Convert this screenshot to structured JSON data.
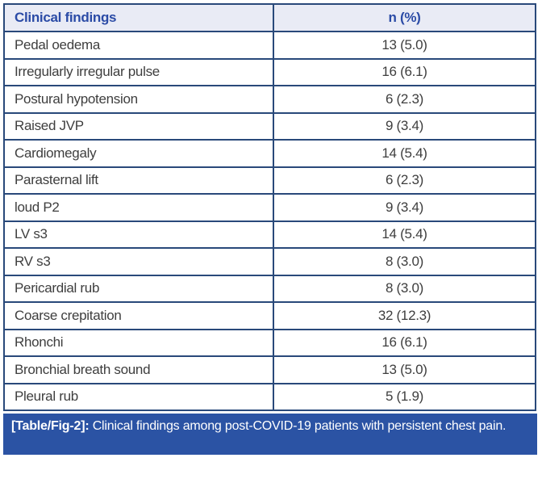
{
  "table": {
    "header": {
      "findings_label": "Clinical findings",
      "value_label": "n (%)"
    },
    "rows": [
      {
        "finding": "Pedal oedema",
        "value": "13 (5.0)"
      },
      {
        "finding": "Irregularly irregular pulse",
        "value": "16 (6.1)"
      },
      {
        "finding": "Postural hypotension",
        "value": "6 (2.3)"
      },
      {
        "finding": "Raised JVP",
        "value": "9 (3.4)"
      },
      {
        "finding": "Cardiomegaly",
        "value": "14 (5.4)"
      },
      {
        "finding": "Parasternal lift",
        "value": "6 (2.3)"
      },
      {
        "finding": "loud P2",
        "value": "9 (3.4)"
      },
      {
        "finding": "LV s3",
        "value": "14 (5.4)"
      },
      {
        "finding": "RV s3",
        "value": "8 (3.0)"
      },
      {
        "finding": "Pericardial rub",
        "value": "8 (3.0)"
      },
      {
        "finding": "Coarse crepitation",
        "value": "32 (12.3)"
      },
      {
        "finding": "Rhonchi",
        "value": "16 (6.1)"
      },
      {
        "finding": "Bronchial breath sound",
        "value": "13 (5.0)"
      },
      {
        "finding": "Pleural rub",
        "value": "5 (1.9)"
      }
    ]
  },
  "caption": {
    "label": "[Table/Fig-2]:",
    "text": "Clinical findings among post-COVID-19 patients with persistent chest pain."
  },
  "colors": {
    "table_border": "#29497a",
    "header_background": "#e9ebf5",
    "header_text": "#2b4ba6",
    "body_text": "#3e3e3e",
    "caption_background": "#2b53a4",
    "caption_text": "#ffffff"
  }
}
